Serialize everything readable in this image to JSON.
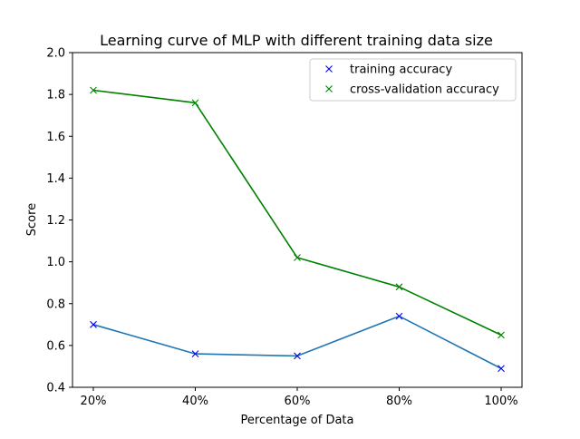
{
  "chart_data": {
    "type": "line",
    "title": "Learning curve of MLP with different training data size",
    "xlabel": "Percentage of Data",
    "ylabel": "Score",
    "categories": [
      "20%",
      "40%",
      "60%",
      "80%",
      "100%"
    ],
    "ylim": [
      0.4,
      2.0
    ],
    "yticks": [
      "0.4",
      "0.6",
      "0.8",
      "1.0",
      "1.2",
      "1.4",
      "1.6",
      "1.8",
      "2.0"
    ],
    "legend_position": "top-right",
    "grid": false,
    "series": [
      {
        "name": "training accuracy",
        "values": [
          0.7,
          0.56,
          0.55,
          0.74,
          0.49
        ],
        "line_color": "#1f77b4",
        "marker_color": "#0000ff",
        "marker": "x"
      },
      {
        "name": "cross-validation accuracy",
        "values": [
          1.82,
          1.76,
          1.02,
          0.88,
          0.65
        ],
        "line_color": "#008000",
        "marker_color": "#008000",
        "marker": "x"
      }
    ]
  }
}
